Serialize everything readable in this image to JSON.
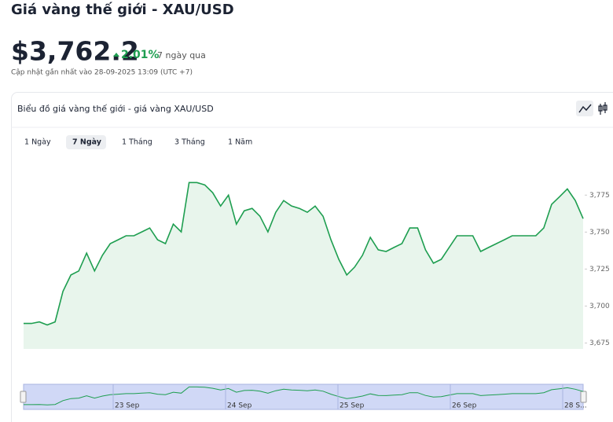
{
  "header": {
    "title": "Giá vàng thế giới - XAU/USD",
    "price": "$3,762.2",
    "change": "2.01%",
    "period": "7 ngày qua",
    "updated": "Cập nhật gần nhất vào 28-09-2025 13:09 (UTC +7)"
  },
  "tabs": [
    "1 Ngày",
    "7 Ngày",
    "1 Tháng",
    "3 Tháng",
    "1 Năm"
  ],
  "navigator": {
    "labels": [
      "23 Sep",
      "24 Sep",
      "25 Sep",
      "26 Sep",
      "28 S..."
    ]
  },
  "chart_data": {
    "type": "line",
    "title": "Biểu đồ giá vàng thế giới - giá vàng XAU/USD",
    "color": "#1e9e50",
    "values": [
      3688.2,
      3688.2,
      3689.3,
      3687.2,
      3689.3,
      3709.9,
      3721,
      3723.7,
      3735.8,
      3723.7,
      3734.3,
      3742.2,
      3744.8,
      3747.5,
      3747.5,
      3750.1,
      3752.8,
      3744.8,
      3742.2,
      3755.4,
      3750.1,
      3783.5,
      3783.5,
      3781.9,
      3776.6,
      3767.6,
      3775,
      3755.4,
      3764.4,
      3766,
      3760.7,
      3750.1,
      3763.4,
      3771.3,
      3767.6,
      3766,
      3763.4,
      3767.6,
      3760.7,
      3744.8,
      3731.6,
      3721,
      3726.3,
      3734.3,
      3746.4,
      3738,
      3736.9,
      3739.6,
      3742.2,
      3752.8,
      3752.8,
      3738,
      3729,
      3731.6,
      3739.6,
      3747.5,
      3747.5,
      3747.5,
      3736.9,
      3739.6,
      3742.2,
      3744.8,
      3747.5,
      3747.5,
      3747.5,
      3747.5,
      3752.8,
      3768.7,
      3773.9,
      3779.2,
      3771.3,
      3759.1
    ],
    "ylim": [
      3671,
      3798
    ],
    "yticks": [
      {
        "value": 3675,
        "label": "3,675"
      },
      {
        "value": 3700,
        "label": "3,700"
      },
      {
        "value": 3725,
        "label": "3,725"
      },
      {
        "value": 3750,
        "label": "3,750"
      },
      {
        "value": 3775,
        "label": "3,775"
      }
    ]
  }
}
